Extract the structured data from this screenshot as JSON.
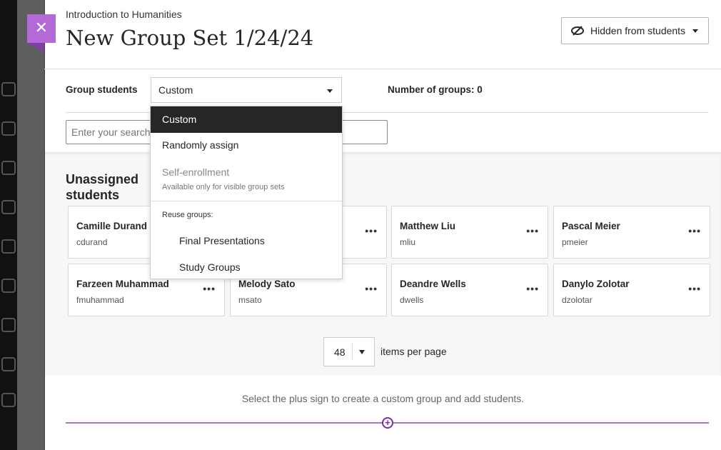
{
  "header": {
    "course": "Introduction to Humanities",
    "title": "New Group Set 1/24/24",
    "visibility_label": "Hidden from students",
    "close_icon": "close-icon"
  },
  "controls": {
    "group_students_label": "Group students",
    "group_students_value": "Custom",
    "number_of_groups_label": "Number of groups: 0",
    "search_placeholder": "Enter your search"
  },
  "dropdown": {
    "options": [
      {
        "label": "Custom",
        "selected": true
      },
      {
        "label": "Randomly assign"
      },
      {
        "label": "Self-enrollment",
        "disabled": true,
        "note": "Available only for visible group sets"
      }
    ],
    "reuse_label": "Reuse groups:",
    "reuse_options": [
      "Final Presentations",
      "Study Groups"
    ]
  },
  "unassigned": {
    "heading": "Unassigned students",
    "students": [
      {
        "name": "Camille Durand",
        "username": "cdurand"
      },
      {
        "name": "",
        "username": ""
      },
      {
        "name": "Matthew Liu",
        "username": "mliu"
      },
      {
        "name": "Pascal Meier",
        "username": "pmeier"
      },
      {
        "name": "Farzeen Muhammad",
        "username": "fmuhammad"
      },
      {
        "name": "Melody Sato",
        "username": "msato"
      },
      {
        "name": "Deandre Wells",
        "username": "dwells"
      },
      {
        "name": "Danylo Zolotar",
        "username": "dzolotar"
      }
    ]
  },
  "pagination": {
    "per_page": "48",
    "label": "items per page"
  },
  "footer": {
    "hint": "Select the plus sign to create a custom group and add students."
  },
  "colors": {
    "accent": "#b46ad6",
    "line": "#a675bf",
    "plus": "#7a2ea3"
  }
}
